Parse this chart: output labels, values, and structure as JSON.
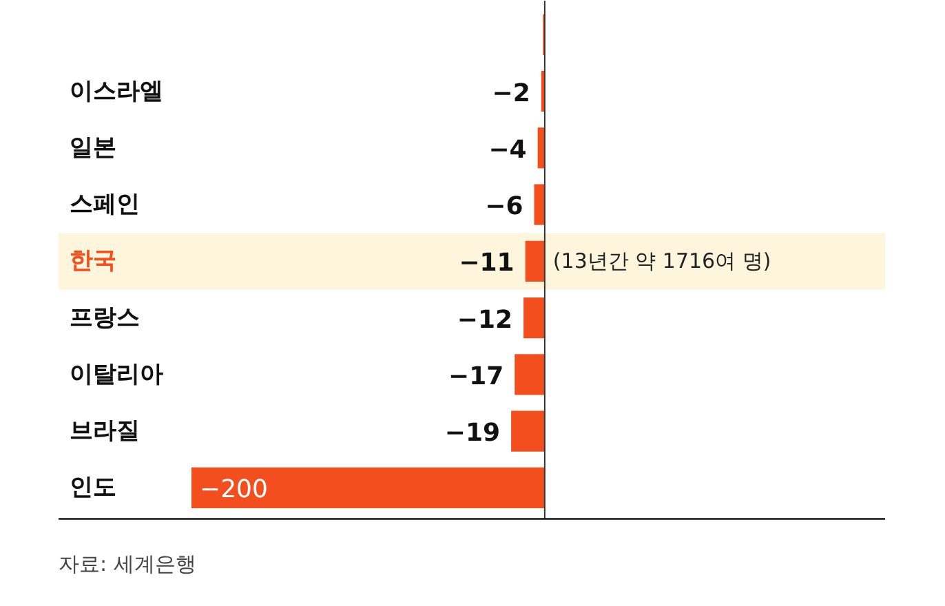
{
  "chart_data": {
    "type": "bar",
    "orientation": "horizontal",
    "categories": [
      null,
      "이스라엘",
      "일본",
      "스페인",
      "한국",
      "프랑스",
      "이탈리아",
      "브라질",
      "인도"
    ],
    "values": [
      -1,
      -2,
      -4,
      -6,
      -11,
      -12,
      -17,
      -19,
      -200
    ],
    "value_labels": [
      null,
      "−2",
      "−4",
      "−6",
      "−11",
      "−12",
      "−17",
      "−19",
      "−200"
    ],
    "color": "#f24e1e",
    "xlim": [
      -308,
      227
    ],
    "tick_labels": false,
    "bands": [
      {
        "axis": "y",
        "from": "한국",
        "to": "한국",
        "color": "#fdf6dc"
      }
    ],
    "annotations": [
      {
        "text": "(13년간 약 1716여 명)",
        "x": 0,
        "y": "한국"
      },
      "자료: 세계은행"
    ]
  }
}
